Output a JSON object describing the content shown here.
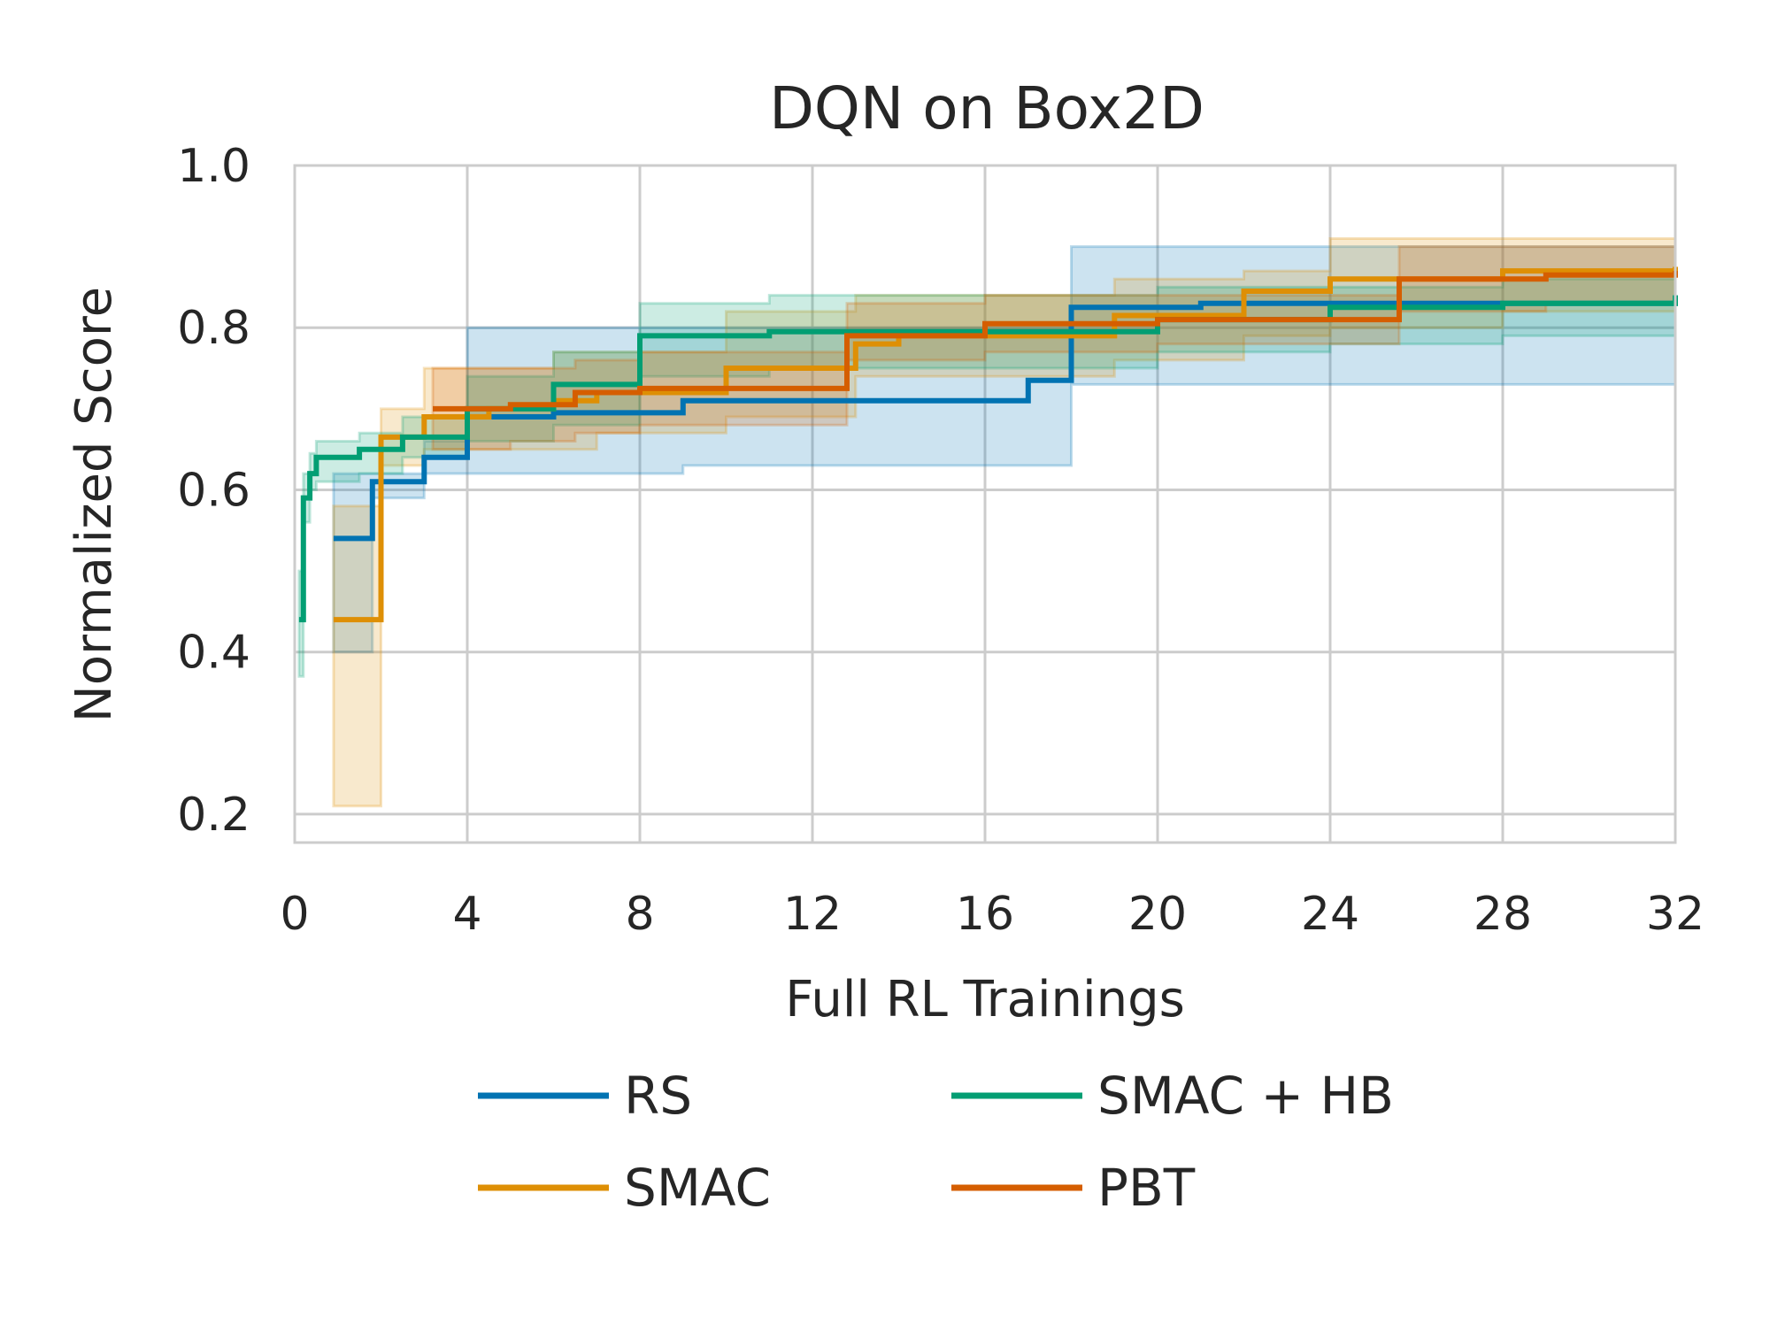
{
  "chart_data": {
    "type": "line",
    "title": "DQN on Box2D",
    "xlabel": "Full RL Trainings",
    "ylabel": "Normalized Score",
    "xlim": [
      0,
      32
    ],
    "ylim": [
      0.165,
      1.0
    ],
    "xticks": [
      0,
      4,
      8,
      12,
      16,
      20,
      24,
      28,
      32
    ],
    "yticks": [
      0.2,
      0.4,
      0.6,
      0.8,
      1.0
    ],
    "xtick_labels": [
      "0",
      "4",
      "8",
      "12",
      "16",
      "20",
      "24",
      "28",
      "32"
    ],
    "ytick_labels": [
      "0.2",
      "0.4",
      "0.6",
      "0.8",
      "1.0"
    ],
    "grid": true,
    "legend": {
      "placement": "bottom-center",
      "columns": 2
    },
    "series": [
      {
        "name": "RS",
        "color": "#0173b2",
        "x": [
          0.9,
          1.8,
          1.8,
          3.0,
          3.0,
          4.0,
          4.0,
          6.0,
          9.0,
          17.0,
          17.0,
          18.0,
          18.0,
          21.0,
          32.0
        ],
        "y": [
          0.54,
          0.54,
          0.61,
          0.61,
          0.64,
          0.64,
          0.69,
          0.695,
          0.71,
          0.71,
          0.735,
          0.735,
          0.825,
          0.83,
          0.835
        ],
        "lower": [
          0.4,
          0.4,
          0.59,
          0.59,
          0.62,
          0.62,
          0.62,
          0.62,
          0.63,
          0.63,
          0.63,
          0.63,
          0.73,
          0.73,
          0.73
        ],
        "upper": [
          0.62,
          0.62,
          0.62,
          0.62,
          0.66,
          0.66,
          0.8,
          0.8,
          0.8,
          0.8,
          0.8,
          0.8,
          0.9,
          0.9,
          0.9
        ]
      },
      {
        "name": "SMAC",
        "color": "#de8f05",
        "x": [
          0.9,
          2.0,
          2.0,
          3.0,
          3.0,
          4.5,
          6.0,
          7.0,
          10.0,
          13.0,
          13.0,
          14.0,
          19.0,
          22.0,
          22.0,
          24.0,
          24.0,
          28.0,
          32.0
        ],
        "y": [
          0.44,
          0.44,
          0.665,
          0.665,
          0.69,
          0.7,
          0.71,
          0.72,
          0.75,
          0.76,
          0.78,
          0.79,
          0.815,
          0.82,
          0.845,
          0.845,
          0.86,
          0.87,
          0.875
        ],
        "lower": [
          0.21,
          0.21,
          0.63,
          0.63,
          0.65,
          0.65,
          0.65,
          0.67,
          0.69,
          0.73,
          0.74,
          0.74,
          0.76,
          0.77,
          0.79,
          0.79,
          0.8,
          0.82,
          0.83
        ],
        "upper": [
          0.58,
          0.58,
          0.7,
          0.7,
          0.75,
          0.75,
          0.77,
          0.77,
          0.82,
          0.82,
          0.84,
          0.84,
          0.86,
          0.86,
          0.87,
          0.87,
          0.91,
          0.91,
          0.91
        ]
      },
      {
        "name": "SMAC + HB",
        "color": "#029e73",
        "x": [
          0.1,
          0.2,
          0.2,
          0.35,
          0.35,
          0.5,
          0.5,
          1.5,
          1.5,
          2.5,
          2.5,
          4.0,
          4.0,
          6.0,
          8.0,
          8.0,
          11.0,
          20.0,
          20.0,
          24.0,
          28.0,
          32.0
        ],
        "y": [
          0.44,
          0.44,
          0.59,
          0.59,
          0.62,
          0.62,
          0.64,
          0.645,
          0.65,
          0.655,
          0.665,
          0.665,
          0.7,
          0.73,
          0.735,
          0.79,
          0.795,
          0.795,
          0.81,
          0.825,
          0.83,
          0.84
        ],
        "lower": [
          0.37,
          0.37,
          0.56,
          0.56,
          0.6,
          0.6,
          0.61,
          0.61,
          0.62,
          0.62,
          0.64,
          0.64,
          0.66,
          0.68,
          0.68,
          0.74,
          0.75,
          0.75,
          0.77,
          0.78,
          0.79,
          0.79
        ],
        "upper": [
          0.5,
          0.5,
          0.62,
          0.62,
          0.645,
          0.645,
          0.66,
          0.66,
          0.67,
          0.67,
          0.69,
          0.69,
          0.74,
          0.77,
          0.77,
          0.83,
          0.84,
          0.84,
          0.85,
          0.85,
          0.86,
          0.86
        ]
      },
      {
        "name": "PBT",
        "color": "#d55e00",
        "x": [
          3.2,
          5.0,
          6.5,
          8.0,
          12.8,
          12.8,
          16.0,
          16.0,
          20.0,
          25.6,
          25.6,
          29.0,
          32.0
        ],
        "y": [
          0.7,
          0.705,
          0.72,
          0.725,
          0.725,
          0.79,
          0.795,
          0.805,
          0.81,
          0.81,
          0.86,
          0.865,
          0.87
        ],
        "lower": [
          0.65,
          0.66,
          0.67,
          0.68,
          0.68,
          0.76,
          0.76,
          0.77,
          0.78,
          0.78,
          0.82,
          0.83,
          0.84
        ],
        "upper": [
          0.75,
          0.75,
          0.76,
          0.77,
          0.77,
          0.83,
          0.84,
          0.84,
          0.84,
          0.84,
          0.9,
          0.9,
          0.9
        ]
      }
    ]
  }
}
